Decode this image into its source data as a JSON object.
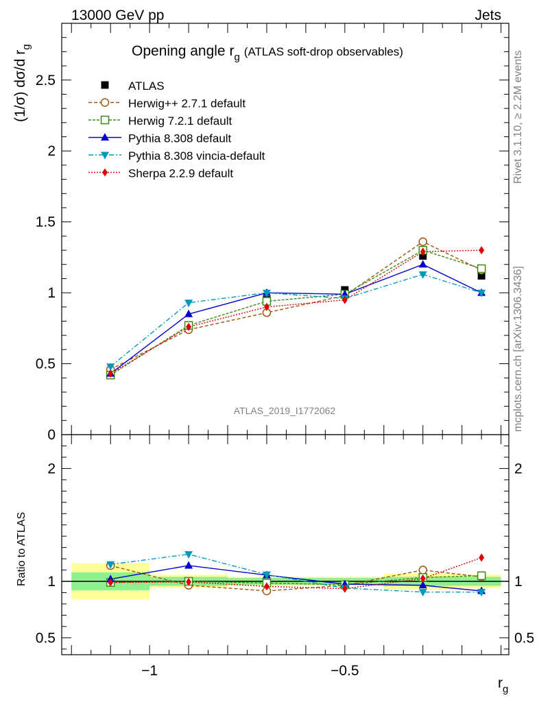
{
  "header": {
    "energy_label": "13000 GeV pp",
    "process_label": "Jets"
  },
  "side_labels": {
    "rivet": "Rivet 3.1.10, ≥ 2.2M events",
    "mcplots": "mcplots.cern.ch [arXiv:1306.3436]"
  },
  "watermark": "ATLAS_2019_I1772062",
  "chart_data": {
    "type": "line",
    "title": "Opening angle r",
    "title_sub": "g",
    "title_note": "(ATLAS soft-drop observables)",
    "ylabel": "(1/σ) dσ/d r",
    "ylabel_sub": "g",
    "xlabel": "r",
    "xlabel_sub": "g",
    "ratio_ylabel": "Ratio to ATLAS",
    "xlim": [
      -1.225,
      -0.08
    ],
    "ylim": [
      0,
      2.9
    ],
    "ratio_ylim": [
      0.35,
      2.3
    ],
    "x_ticks": [
      -1,
      -0.5
    ],
    "x_tick_labels": [
      "−1",
      "−0.5"
    ],
    "y_ticks": [
      0,
      0.5,
      1,
      1.5,
      2,
      2.5
    ],
    "y_tick_labels": [
      "0",
      "0.5",
      "1",
      "1.5",
      "2",
      "2.5"
    ],
    "ratio_ticks": [
      0.5,
      1,
      2
    ],
    "ratio_tick_labels": [
      "0.5",
      "1",
      "2"
    ],
    "bin_edges": [
      -1.2,
      -1.0,
      -0.8,
      -0.6,
      -0.4,
      -0.2,
      -0.1
    ],
    "x": [
      -1.1,
      -0.9,
      -0.7,
      -0.5,
      -0.3,
      -0.15
    ],
    "data": {
      "name": "ATLAS",
      "values": [
        0.42,
        0.77,
        0.95,
        1.02,
        1.26,
        1.12
      ],
      "band_green": [
        0.08,
        0.04,
        0.03,
        0.03,
        0.04,
        0.04
      ],
      "band_yellow": [
        0.16,
        0.06,
        0.04,
        0.04,
        0.07,
        0.06
      ]
    },
    "series": [
      {
        "name": "Herwig++ 2.7.1 default",
        "color": "#a0520a",
        "dash": "5,3",
        "marker": "circle-open",
        "values": [
          0.46,
          0.74,
          0.86,
          0.98,
          1.36,
          1.16
        ],
        "ratio": [
          1.14,
          0.965,
          0.915,
          0.965,
          1.1,
          1.04
        ]
      },
      {
        "name": "Herwig 7.2.1 default",
        "color": "#3d8a12",
        "dash": "4,2",
        "marker": "square-open",
        "values": [
          0.42,
          0.77,
          0.94,
          0.99,
          1.3,
          1.17
        ],
        "ratio": [
          0.99,
          1.0,
          0.985,
          0.97,
          1.035,
          1.05
        ]
      },
      {
        "name": "Pythia 8.308 default",
        "color": "#0000cc",
        "dash": "",
        "marker": "triangle-up",
        "values": [
          0.43,
          0.85,
          1.0,
          0.99,
          1.2,
          1.0
        ],
        "ratio": [
          1.02,
          1.14,
          1.055,
          0.975,
          0.965,
          0.915
        ]
      },
      {
        "name": "Pythia 8.308 vincia-default",
        "color": "#0099bb",
        "dash": "7,3,2,3",
        "marker": "triangle-down",
        "values": [
          0.48,
          0.93,
          1.0,
          0.96,
          1.13,
          1.0
        ],
        "ratio": [
          1.15,
          1.24,
          1.06,
          0.94,
          0.905,
          0.905
        ]
      },
      {
        "name": "Sherpa 2.2.9 default",
        "color": "#dd0000",
        "dash": "2,2",
        "marker": "diamond",
        "values": [
          0.43,
          0.76,
          0.9,
          0.95,
          1.29,
          1.3
        ],
        "ratio": [
          0.99,
          0.995,
          0.955,
          0.935,
          1.025,
          1.21
        ]
      }
    ]
  }
}
